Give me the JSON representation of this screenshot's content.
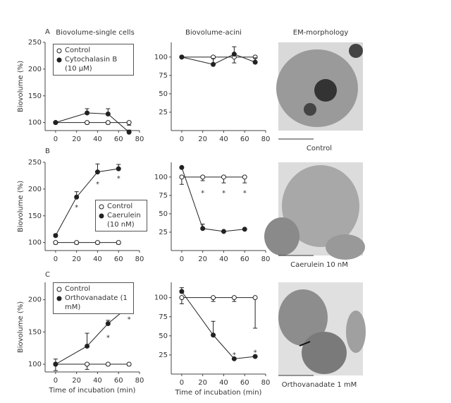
{
  "panel_labels": [
    "A",
    "B",
    "C"
  ],
  "column_titles": [
    "Biovolume-single cells",
    "Biovolume-acini",
    "EM-morphology"
  ],
  "image_captions": [
    "Control",
    "Caerulein 10 nM",
    "Orthovanadate 1 mM"
  ],
  "chart_data": [
    {
      "type": "line",
      "ylabel": "Biovolume (%)",
      "xlim": [
        -10,
        80
      ],
      "ylim": [
        85,
        250
      ],
      "xticks": [
        0,
        20,
        40,
        60,
        80
      ],
      "yticks": [
        100,
        150,
        200,
        250
      ],
      "series": [
        {
          "name": "Control",
          "marker": "open",
          "color": "#222",
          "x": [
            0,
            30,
            50,
            70
          ],
          "values": [
            100,
            100,
            100,
            100
          ],
          "errors": [
            2,
            3,
            3,
            5
          ]
        },
        {
          "name": "Cytochalasin B (10 μM)",
          "marker": "filled",
          "color": "#222",
          "x": [
            0,
            30,
            50,
            70
          ],
          "values": [
            100,
            118,
            116,
            82
          ],
          "errors": [
            2,
            8,
            10,
            4
          ]
        }
      ]
    },
    {
      "type": "line",
      "xlim": [
        -10,
        80
      ],
      "ylim": [
        0,
        120
      ],
      "xticks": [
        0,
        20,
        40,
        60,
        80
      ],
      "yticks": [
        25,
        50,
        75,
        100
      ],
      "series": [
        {
          "marker": "open",
          "color": "#222",
          "x": [
            0,
            30,
            50,
            70
          ],
          "values": [
            100,
            100,
            100,
            100
          ],
          "errors": [
            0,
            10,
            8,
            6
          ]
        },
        {
          "marker": "filled",
          "color": "#222",
          "x": [
            0,
            30,
            50,
            70
          ],
          "values": [
            100,
            90,
            104,
            93
          ],
          "errors": [
            0,
            8,
            10,
            6
          ]
        }
      ]
    },
    {
      "type": "line",
      "ylabel": "Biovolume (%)",
      "xlim": [
        -10,
        80
      ],
      "ylim": [
        85,
        250
      ],
      "xticks": [
        0,
        20,
        40,
        60,
        80
      ],
      "yticks": [
        100,
        150,
        200,
        250
      ],
      "series": [
        {
          "name": "Control",
          "marker": "open",
          "color": "#222",
          "x": [
            0,
            20,
            40,
            60
          ],
          "values": [
            100,
            100,
            100,
            100
          ],
          "errors": [
            3,
            3,
            3,
            3
          ]
        },
        {
          "name": "Caerulein (10 nM)",
          "marker": "filled",
          "color": "#222",
          "x": [
            0,
            20,
            40,
            60
          ],
          "values": [
            113,
            185,
            232,
            238
          ],
          "errors": [
            3,
            10,
            15,
            8
          ]
        }
      ],
      "annotations": [
        {
          "text": "*",
          "x": 20,
          "y": 168
        },
        {
          "text": "*",
          "x": 40,
          "y": 212
        },
        {
          "text": "*",
          "x": 60,
          "y": 222
        }
      ]
    },
    {
      "type": "line",
      "xlim": [
        -10,
        80
      ],
      "ylim": [
        0,
        120
      ],
      "xticks": [
        0,
        20,
        40,
        60,
        80
      ],
      "yticks": [
        25,
        50,
        75,
        100
      ],
      "series": [
        {
          "marker": "open",
          "color": "#222",
          "x": [
            0,
            20,
            40,
            60
          ],
          "values": [
            100,
            100,
            100,
            100
          ],
          "errors": [
            10,
            5,
            8,
            8
          ]
        },
        {
          "marker": "filled",
          "color": "#222",
          "x": [
            0,
            20,
            40,
            60
          ],
          "values": [
            113,
            30,
            26,
            29
          ],
          "errors": [
            0,
            6,
            0,
            0
          ]
        }
      ],
      "annotations": [
        {
          "text": "*",
          "x": 20,
          "y": 80
        },
        {
          "text": "*",
          "x": 40,
          "y": 80
        },
        {
          "text": "*",
          "x": 60,
          "y": 80
        }
      ]
    },
    {
      "type": "line",
      "ylabel": "Biovolume (%)",
      "xlabel": "Time of incubation (min)",
      "xlim": [
        -10,
        80
      ],
      "ylim": [
        88,
        227
      ],
      "xticks": [
        0,
        20,
        40,
        60,
        80
      ],
      "yticks": [
        100,
        150,
        200
      ],
      "series": [
        {
          "name": "Control",
          "marker": "open",
          "color": "#222",
          "x": [
            0,
            30,
            50,
            70
          ],
          "values": [
            100,
            100,
            100,
            100
          ],
          "errors": [
            10,
            8,
            2,
            2
          ]
        },
        {
          "name": "Orthovanadate (1 mM)",
          "marker": "filled",
          "color": "#222",
          "x": [
            0,
            30,
            50,
            70
          ],
          "values": [
            100,
            128,
            163,
            190
          ],
          "errors": [
            8,
            20,
            5,
            10
          ]
        }
      ],
      "annotations": [
        {
          "text": "*",
          "x": 50,
          "y": 143
        },
        {
          "text": "*",
          "x": 70,
          "y": 172
        }
      ]
    },
    {
      "type": "line",
      "xlabel": "Time of incubation (min)",
      "xlim": [
        -10,
        80
      ],
      "ylim": [
        0,
        120
      ],
      "xticks": [
        0,
        20,
        40,
        60,
        80
      ],
      "yticks": [
        25,
        50,
        75,
        100
      ],
      "series": [
        {
          "marker": "open",
          "color": "#222",
          "x": [
            0,
            30,
            50,
            70
          ],
          "values": [
            100,
            100,
            100,
            100
          ],
          "errors": [
            8,
            5,
            5,
            40
          ]
        },
        {
          "marker": "filled",
          "color": "#222",
          "x": [
            0,
            30,
            50,
            70
          ],
          "values": [
            108,
            51,
            20,
            23
          ],
          "errors": [
            5,
            18,
            0,
            0
          ]
        }
      ],
      "annotations": [
        {
          "text": "*",
          "x": 50,
          "y": 27
        },
        {
          "text": "*",
          "x": 70,
          "y": 30
        }
      ]
    }
  ]
}
